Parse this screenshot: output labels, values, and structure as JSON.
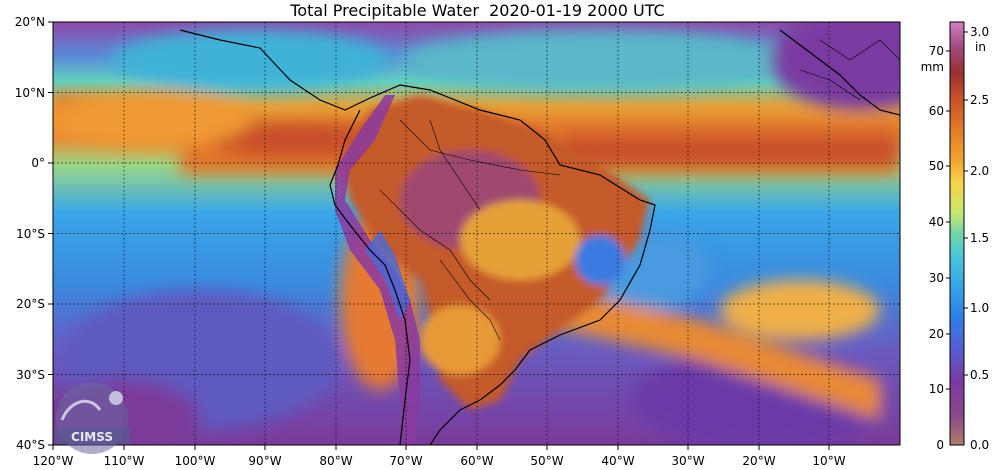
{
  "title": "Total Precipitable Water  2020-01-19 2000 UTC",
  "chart_data": {
    "type": "map",
    "lon_range": [
      -120,
      0
    ],
    "lat_range": [
      -40,
      20
    ],
    "lon_ticks": [
      "120°W",
      "110°W",
      "100°W",
      "90°W",
      "80°W",
      "70°W",
      "60°W",
      "50°W",
      "40°W",
      "30°W",
      "20°W",
      "10°W"
    ],
    "lat_ticks": [
      "20°N",
      "10°N",
      "0°",
      "10°S",
      "20°S",
      "30°S",
      "40°S"
    ],
    "grid": true,
    "colorbar": {
      "mm_ticks": [
        "0",
        "10",
        "20",
        "30",
        "40",
        "50",
        "60",
        "70"
      ],
      "mm_unit": "mm",
      "in_ticks": [
        "0.0",
        "0.5",
        "1.0",
        "1.5",
        "2.0",
        "2.5",
        "3.0"
      ],
      "in_unit": "in",
      "range_mm": [
        0,
        76
      ],
      "colors": [
        "#b07a6a",
        "#8a4a8a",
        "#7a3aa0",
        "#5a5ad0",
        "#2f7ee6",
        "#3aa6e8",
        "#4cc8d8",
        "#74d6a8",
        "#c8e870",
        "#f6d24a",
        "#f2a030",
        "#e07a2a",
        "#c8502a",
        "#9a3030",
        "#a04a80",
        "#d080c0"
      ]
    }
  },
  "logo": {
    "text": "CIMSS"
  },
  "colors": {
    "ocean_low": "#6a4aa8",
    "ocean_mid": "#3aa6e8",
    "itcz": "#e07a2a",
    "land_wet": "#b0502a",
    "andes": "#8a3a9a"
  }
}
